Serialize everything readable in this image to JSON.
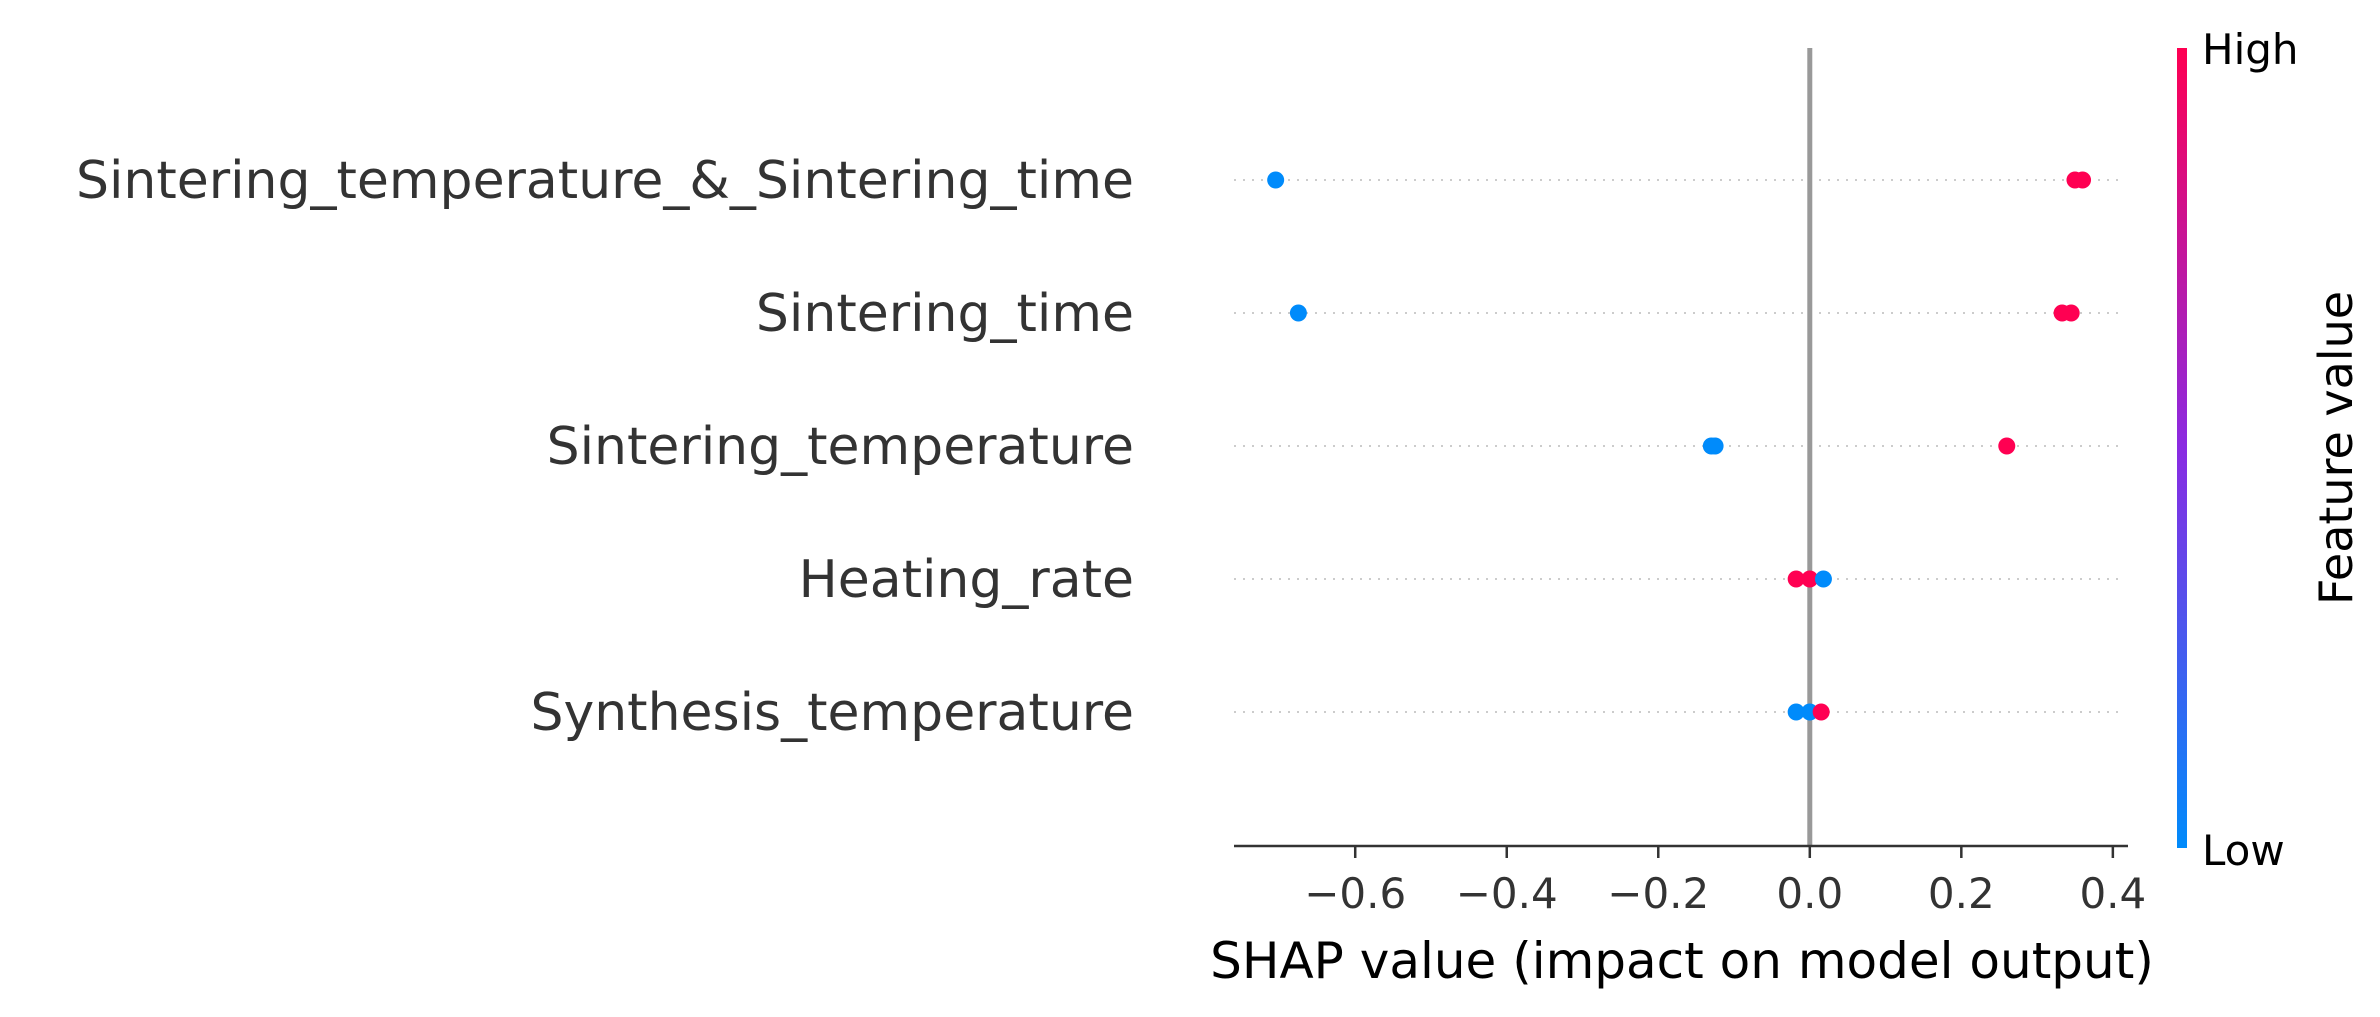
{
  "chart_data": {
    "type": "scatter",
    "subtype": "shap-beeswarm",
    "title": "",
    "xlabel": "SHAP value (impact on model output)",
    "xlim": [
      -0.76,
      0.42
    ],
    "xticks": [
      -0.6,
      -0.4,
      -0.2,
      0.0,
      0.2,
      0.4
    ],
    "xtick_labels": [
      "−0.6",
      "−0.4",
      "−0.2",
      "0.0",
      "0.2",
      "0.4"
    ],
    "zero_line": true,
    "features": [
      {
        "name": "Sintering_temperature_&_Sintering_time",
        "points": [
          {
            "shap": -0.705,
            "value": "low"
          },
          {
            "shap": 0.35,
            "value": "high"
          },
          {
            "shap": 0.36,
            "value": "high"
          }
        ]
      },
      {
        "name": "Sintering_time",
        "points": [
          {
            "shap": -0.675,
            "value": "low"
          },
          {
            "shap": 0.333,
            "value": "high"
          },
          {
            "shap": 0.345,
            "value": "high"
          }
        ]
      },
      {
        "name": "Sintering_temperature",
        "points": [
          {
            "shap": -0.13,
            "value": "low"
          },
          {
            "shap": -0.125,
            "value": "low"
          },
          {
            "shap": 0.26,
            "value": "high"
          }
        ]
      },
      {
        "name": "Heating_rate",
        "points": [
          {
            "shap": -0.018,
            "value": "high"
          },
          {
            "shap": 0.0,
            "value": "high"
          },
          {
            "shap": 0.018,
            "value": "low"
          }
        ]
      },
      {
        "name": "Synthesis_temperature",
        "points": [
          {
            "shap": -0.018,
            "value": "low"
          },
          {
            "shap": 0.0,
            "value": "low"
          },
          {
            "shap": 0.015,
            "value": "high"
          }
        ]
      }
    ],
    "colorbar": {
      "title": "Feature value",
      "high_label": "High",
      "low_label": "Low",
      "high_color": "#ff0052",
      "mid_color": "#8a2be2",
      "low_color": "#008bfb"
    },
    "colors": {
      "axis": "#333333",
      "zero_line": "#999999",
      "row_guide": "#cccccc"
    }
  }
}
